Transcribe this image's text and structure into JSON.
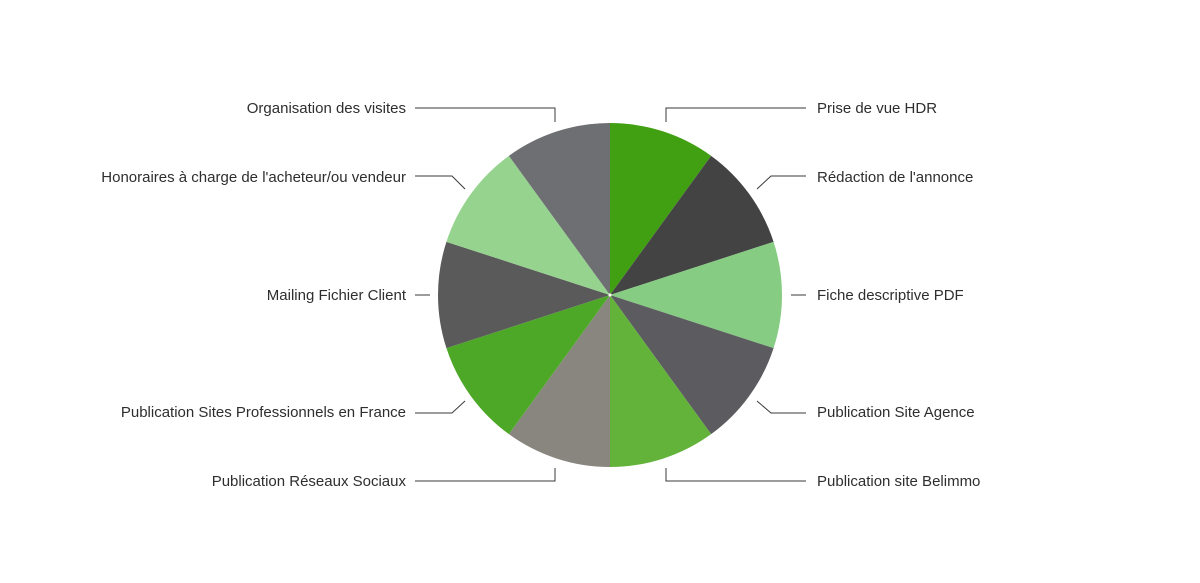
{
  "chart_data": {
    "type": "pie",
    "title": "",
    "start": "12 o'clock",
    "direction": "clockwise",
    "legend": "none",
    "slices": [
      {
        "label": "Prise de vue HDR",
        "value": 10,
        "color": "#41a012"
      },
      {
        "label": "Rédaction de l'annonce",
        "value": 10,
        "color": "#434343"
      },
      {
        "label": "Fiche descriptive PDF",
        "value": 10,
        "color": "#86cc82"
      },
      {
        "label": "Publication Site Agence",
        "value": 10,
        "color": "#5b5b60"
      },
      {
        "label": "Publication site Belimmo",
        "value": 10,
        "color": "#63b33a"
      },
      {
        "label": "Publication Réseaux Sociaux",
        "value": 10,
        "color": "#89857f"
      },
      {
        "label": "Publication Sites Professionnels en France",
        "value": 10,
        "color": "#4ea828"
      },
      {
        "label": "Mailing Fichier Client",
        "value": 10,
        "color": "#5a5a5a"
      },
      {
        "label": "Honoraires à charge de l'acheteur/ou vendeur",
        "value": 10,
        "color": "#95d38e"
      },
      {
        "label": "Organisation des visites",
        "value": 10,
        "color": "#6e6f73"
      }
    ]
  }
}
